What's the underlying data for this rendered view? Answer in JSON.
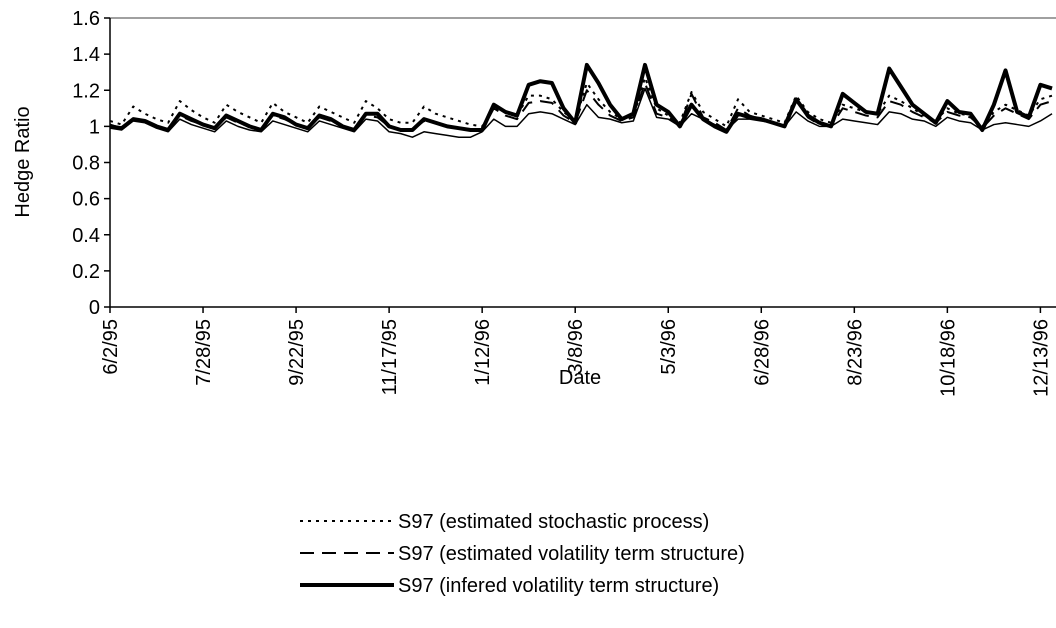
{
  "chart_data": {
    "type": "line",
    "x_label": "Date",
    "y_label": "Hedge Ratio",
    "categories": [
      "6/2/95",
      null,
      null,
      null,
      null,
      null,
      null,
      null,
      "7/28/95",
      null,
      null,
      null,
      null,
      null,
      null,
      null,
      "9/22/95",
      null,
      null,
      null,
      null,
      null,
      null,
      null,
      "11/17/95",
      null,
      null,
      null,
      null,
      null,
      null,
      null,
      "1/12/96",
      null,
      null,
      null,
      null,
      null,
      null,
      null,
      "3/8/96",
      null,
      null,
      null,
      null,
      null,
      null,
      null,
      "5/3/96",
      null,
      null,
      null,
      null,
      null,
      null,
      null,
      "6/28/96",
      null,
      null,
      null,
      null,
      null,
      null,
      null,
      "8/23/96",
      null,
      null,
      null,
      null,
      null,
      null,
      null,
      "10/18/96",
      null,
      null,
      null,
      null,
      null,
      null,
      null,
      "12/13/96",
      null
    ],
    "ylim": [
      0,
      1.6
    ],
    "yticks": [
      0,
      0.2,
      0.4,
      0.6,
      0.8,
      1,
      1.2,
      1.4,
      1.6
    ],
    "series": [
      {
        "name": "S97 (estimated stochastic process)",
        "color": "#000000",
        "line_style": "dotted",
        "values": [
          1.03,
          1.01,
          1.11,
          1.07,
          1.04,
          1.02,
          1.14,
          1.09,
          1.05,
          1.02,
          1.12,
          1.08,
          1.05,
          1.02,
          1.13,
          1.08,
          1.05,
          1.02,
          1.11,
          1.08,
          1.05,
          1.02,
          1.14,
          1.1,
          1.04,
          1.02,
          1.02,
          1.11,
          1.07,
          1.05,
          1.03,
          1.01,
          1.0,
          1.1,
          1.08,
          1.06,
          1.17,
          1.17,
          1.15,
          1.08,
          1.03,
          1.24,
          1.15,
          1.08,
          1.04,
          1.05,
          1.27,
          1.1,
          1.06,
          1.02,
          1.19,
          1.08,
          1.04,
          1.0,
          1.15,
          1.08,
          1.06,
          1.04,
          1.02,
          1.17,
          1.08,
          1.04,
          1.02,
          1.12,
          1.1,
          1.08,
          1.07,
          1.17,
          1.14,
          1.1,
          1.06,
          1.03,
          1.1,
          1.07,
          1.06,
          1.0,
          1.08,
          1.12,
          1.09,
          1.06,
          1.15,
          1.17
        ]
      },
      {
        "name": "S97 (estimated volatility term structure)",
        "color": "#000000",
        "line_style": "dashed",
        "values": [
          1.01,
          0.99,
          1.04,
          1.03,
          1.0,
          0.98,
          1.06,
          1.03,
          1.01,
          0.99,
          1.05,
          1.02,
          1.0,
          0.98,
          1.06,
          1.04,
          1.01,
          0.99,
          1.05,
          1.03,
          1.0,
          0.98,
          1.06,
          1.05,
          1.0,
          0.98,
          0.98,
          1.03,
          1.02,
          1.0,
          0.99,
          0.98,
          0.98,
          1.1,
          1.06,
          1.04,
          1.13,
          1.14,
          1.13,
          1.06,
          1.02,
          1.2,
          1.12,
          1.06,
          1.03,
          1.05,
          1.24,
          1.07,
          1.05,
          1.0,
          1.18,
          1.05,
          1.02,
          0.98,
          1.1,
          1.06,
          1.04,
          1.02,
          1.0,
          1.15,
          1.05,
          1.01,
          1.0,
          1.1,
          1.08,
          1.06,
          1.05,
          1.14,
          1.12,
          1.08,
          1.05,
          1.02,
          1.08,
          1.06,
          1.05,
          0.99,
          1.06,
          1.1,
          1.07,
          1.04,
          1.12,
          1.14
        ]
      },
      {
        "name": "S97 (infered volatility term structure)",
        "color": "#000000",
        "line_style": "bold",
        "values": [
          1.0,
          0.99,
          1.04,
          1.03,
          1.0,
          0.98,
          1.07,
          1.04,
          1.01,
          0.99,
          1.06,
          1.03,
          1.0,
          0.98,
          1.07,
          1.05,
          1.01,
          0.99,
          1.06,
          1.04,
          1.0,
          0.98,
          1.07,
          1.07,
          1.0,
          0.98,
          0.98,
          1.04,
          1.02,
          1.0,
          0.99,
          0.98,
          0.98,
          1.12,
          1.08,
          1.06,
          1.23,
          1.25,
          1.24,
          1.1,
          1.02,
          1.34,
          1.24,
          1.12,
          1.04,
          1.07,
          1.34,
          1.12,
          1.08,
          1.0,
          1.12,
          1.04,
          1.0,
          0.97,
          1.07,
          1.05,
          1.04,
          1.02,
          1.0,
          1.15,
          1.06,
          1.02,
          1.0,
          1.18,
          1.13,
          1.08,
          1.07,
          1.32,
          1.22,
          1.12,
          1.07,
          1.02,
          1.14,
          1.08,
          1.07,
          0.98,
          1.12,
          1.31,
          1.08,
          1.05,
          1.23,
          1.21
        ]
      },
      {
        "color": "#000000",
        "line_style": "solid",
        "values": [
          0.99,
          0.98,
          1.03,
          1.02,
          0.99,
          0.97,
          1.04,
          1.01,
          0.99,
          0.97,
          1.03,
          1.0,
          0.98,
          0.97,
          1.03,
          1.01,
          0.99,
          0.97,
          1.03,
          1.01,
          0.99,
          0.97,
          1.04,
          1.03,
          0.97,
          0.96,
          0.94,
          0.97,
          0.96,
          0.95,
          0.94,
          0.94,
          0.97,
          1.04,
          1.0,
          1.0,
          1.07,
          1.08,
          1.07,
          1.04,
          1.01,
          1.12,
          1.05,
          1.04,
          1.02,
          1.03,
          1.21,
          1.05,
          1.04,
          1.0,
          1.07,
          1.04,
          1.01,
          0.98,
          1.04,
          1.04,
          1.03,
          1.02,
          1.0,
          1.08,
          1.03,
          1.0,
          1.0,
          1.04,
          1.03,
          1.02,
          1.01,
          1.08,
          1.07,
          1.04,
          1.03,
          1.0,
          1.05,
          1.03,
          1.02,
          0.98,
          1.01,
          1.02,
          1.01,
          1.0,
          1.03,
          1.07
        ]
      }
    ]
  }
}
